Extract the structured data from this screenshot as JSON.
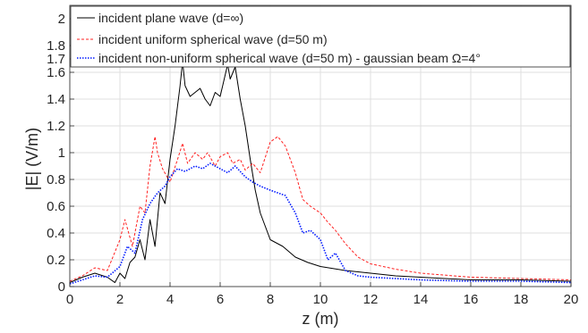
{
  "chart_data": {
    "type": "line",
    "xlabel": "z (m)",
    "ylabel": "|E| (V/m)",
    "xlim": [
      0,
      20
    ],
    "ylim": [
      0,
      2.1
    ],
    "x_ticks": [
      0,
      2,
      4,
      6,
      8,
      10,
      12,
      14,
      16,
      18,
      20
    ],
    "x_tick_labels": [
      "0",
      "2",
      "4",
      "6",
      "8",
      "10",
      "12",
      "14",
      "16",
      "18",
      "20"
    ],
    "y_ticks": [
      0,
      0.2,
      0.4,
      0.6,
      0.8,
      1,
      1.2,
      1.4,
      1.6,
      1.7,
      1.8,
      2
    ],
    "y_tick_labels": [
      "0",
      "0.2",
      "0.4",
      "0.6",
      "0.8",
      "1",
      "1.2",
      "1.4",
      "1.6",
      "1.7",
      "1.8",
      "2"
    ],
    "grid": true,
    "legend_position": "top",
    "series": [
      {
        "name": "incident plane wave (d=∞)",
        "color": "#000000",
        "style": "solid",
        "x": [
          0,
          0.5,
          1.0,
          1.5,
          1.8,
          2.0,
          2.2,
          2.4,
          2.6,
          2.8,
          3.0,
          3.2,
          3.4,
          3.6,
          3.8,
          4.0,
          4.2,
          4.4,
          4.5,
          4.6,
          4.8,
          5.0,
          5.2,
          5.4,
          5.6,
          5.8,
          6.0,
          6.2,
          6.3,
          6.4,
          6.6,
          6.8,
          7.0,
          7.2,
          7.4,
          7.6,
          7.8,
          8.0,
          8.5,
          9.0,
          9.5,
          10.0,
          11.0,
          12.0,
          13.0,
          14.0,
          16.0,
          18.0,
          20.0
        ],
        "y": [
          0.03,
          0.07,
          0.1,
          0.07,
          0.03,
          0.1,
          0.06,
          0.18,
          0.22,
          0.35,
          0.2,
          0.5,
          0.3,
          0.7,
          0.62,
          0.95,
          1.2,
          1.5,
          1.68,
          1.5,
          1.42,
          1.45,
          1.48,
          1.4,
          1.35,
          1.45,
          1.42,
          1.58,
          1.66,
          1.55,
          1.64,
          1.4,
          1.2,
          0.95,
          0.72,
          0.55,
          0.45,
          0.35,
          0.3,
          0.22,
          0.18,
          0.15,
          0.12,
          0.1,
          0.08,
          0.07,
          0.05,
          0.05,
          0.04
        ]
      },
      {
        "name": "incident uniform spherical wave (d=50 m)",
        "color": "#ff2020",
        "style": "dashed",
        "x": [
          0,
          0.5,
          1.0,
          1.5,
          2.0,
          2.2,
          2.5,
          2.8,
          3.0,
          3.2,
          3.4,
          3.5,
          3.7,
          4.0,
          4.3,
          4.5,
          4.7,
          5.0,
          5.3,
          5.5,
          5.8,
          6.0,
          6.3,
          6.5,
          6.8,
          7.0,
          7.3,
          7.6,
          8.0,
          8.3,
          8.6,
          9.0,
          9.3,
          9.6,
          10.0,
          10.3,
          10.6,
          11.0,
          11.5,
          12.0,
          13.0,
          14.0,
          16.0,
          18.0,
          20.0
        ],
        "y": [
          0.04,
          0.08,
          0.14,
          0.12,
          0.35,
          0.5,
          0.3,
          0.6,
          0.55,
          0.9,
          1.12,
          1.0,
          0.88,
          0.78,
          0.95,
          1.07,
          0.92,
          1.0,
          0.95,
          1.0,
          0.9,
          0.97,
          1.0,
          0.92,
          0.95,
          0.87,
          0.92,
          0.85,
          1.08,
          1.12,
          1.05,
          0.85,
          0.65,
          0.6,
          0.55,
          0.48,
          0.42,
          0.32,
          0.22,
          0.17,
          0.13,
          0.1,
          0.07,
          0.06,
          0.05
        ]
      },
      {
        "name": "incident non-uniform spherical wave (d=50 m) - gaussian beam Ω=4°",
        "color": "#0018ff",
        "style": "dotted",
        "x": [
          0,
          0.5,
          1.0,
          1.5,
          2.0,
          2.3,
          2.6,
          2.9,
          3.2,
          3.5,
          3.8,
          4.0,
          4.3,
          4.6,
          5.0,
          5.3,
          5.6,
          6.0,
          6.3,
          6.6,
          7.0,
          7.3,
          7.6,
          8.0,
          8.3,
          8.6,
          9.0,
          9.3,
          9.6,
          10.0,
          10.3,
          10.6,
          11.0,
          11.5,
          12.0,
          13.0,
          14.0,
          16.0,
          18.0,
          20.0
        ],
        "y": [
          0.02,
          0.05,
          0.08,
          0.07,
          0.15,
          0.3,
          0.25,
          0.5,
          0.62,
          0.7,
          0.75,
          0.82,
          0.88,
          0.86,
          0.9,
          0.88,
          0.92,
          0.88,
          0.85,
          0.9,
          0.82,
          0.78,
          0.75,
          0.72,
          0.7,
          0.68,
          0.55,
          0.4,
          0.42,
          0.35,
          0.2,
          0.25,
          0.12,
          0.08,
          0.07,
          0.06,
          0.05,
          0.04,
          0.04,
          0.03
        ]
      }
    ]
  }
}
